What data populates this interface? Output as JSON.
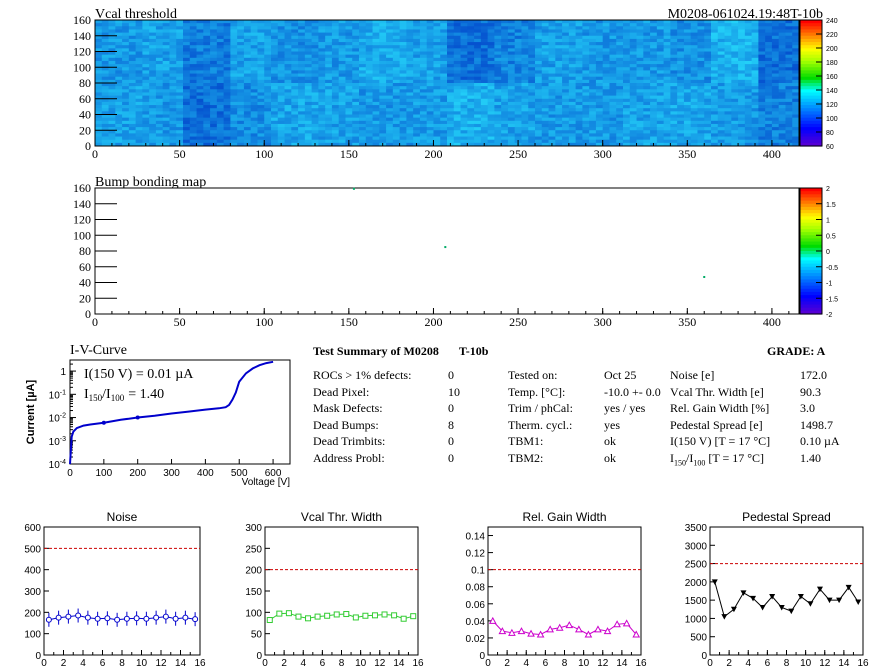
{
  "header": {
    "left_title": "Vcal threshold",
    "right_title": "M0208-061024.19:48T-10b"
  },
  "chart_data": [
    {
      "type": "heatmap",
      "title": "Vcal threshold",
      "xlim": [
        0,
        416
      ],
      "ylim": [
        0,
        160
      ],
      "x_ticks": [
        0,
        50,
        100,
        150,
        200,
        250,
        300,
        350,
        400
      ],
      "y_ticks": [
        0,
        20,
        40,
        60,
        80,
        100,
        120,
        140,
        160
      ],
      "colorbar_ticks": [
        60,
        80,
        100,
        120,
        140,
        160,
        180,
        200,
        220,
        240
      ],
      "roc_mean_levels": {
        "top": [
          0.55,
          0.6,
          0.38,
          0.6,
          0.5,
          0.55,
          0.65,
          0.6,
          0.3,
          0.42,
          0.58,
          0.55,
          0.55,
          0.5,
          0.7,
          0.3
        ],
        "bottom": [
          0.6,
          0.55,
          0.3,
          0.48,
          0.62,
          0.6,
          0.55,
          0.55,
          0.68,
          0.6,
          0.55,
          0.55,
          0.6,
          0.62,
          0.55,
          0.4
        ]
      }
    },
    {
      "type": "heatmap",
      "title": "Bump bonding map",
      "xlim": [
        0,
        416
      ],
      "ylim": [
        0,
        160
      ],
      "x_ticks": [
        0,
        50,
        100,
        150,
        200,
        250,
        300,
        350,
        400
      ],
      "y_ticks": [
        0,
        20,
        40,
        60,
        80,
        100,
        120,
        140,
        160
      ],
      "colorbar_ticks": [
        "2",
        "1.5",
        "1",
        "0.5",
        "0",
        "-0.5",
        "-1",
        "-1.5",
        "-2"
      ],
      "dead_bumps": [
        [
          153,
          159
        ],
        [
          207,
          85
        ],
        [
          360,
          47
        ]
      ]
    },
    {
      "type": "line",
      "title": "I-V-Curve",
      "ylabel": "Current [µA]",
      "xlabel": "Voltage [V]",
      "log_y": true,
      "xlim": [
        0,
        650
      ],
      "ylim": [
        0.0001,
        3
      ],
      "x_ticks": [
        0,
        100,
        200,
        300,
        400,
        500,
        600
      ],
      "y_ticks": [
        {
          "v": 0.0001,
          "m": "-4"
        },
        {
          "v": 0.001,
          "m": "-3"
        },
        {
          "v": 0.01,
          "m": "-2"
        },
        {
          "v": 0.1,
          "m": "-1"
        },
        {
          "v": 1,
          "m": "1"
        }
      ],
      "x": [
        0,
        5,
        10,
        20,
        40,
        60,
        80,
        100,
        150,
        200,
        250,
        300,
        350,
        400,
        440,
        460,
        470,
        480,
        490,
        500,
        520,
        540,
        560,
        580,
        600
      ],
      "y": [
        0.0001,
        0.0015,
        0.0025,
        0.0035,
        0.0045,
        0.005,
        0.0055,
        0.006,
        0.008,
        0.01,
        0.012,
        0.015,
        0.018,
        0.022,
        0.025,
        0.028,
        0.035,
        0.06,
        0.12,
        0.35,
        0.8,
        1.3,
        1.8,
        2.2,
        2.5
      ],
      "annotation1": "I(150 V) = 0.01 µA",
      "annotation2_main": "I",
      "annotation2_sub1": "150",
      "annotation2_mid": "/I",
      "annotation2_sub2": "100",
      "annotation2_val": "=  1.40"
    },
    {
      "type": "line",
      "title": "Noise",
      "xlim": [
        0,
        16
      ],
      "ylim": [
        0,
        600
      ],
      "x_ticks": [
        0,
        2,
        4,
        6,
        8,
        10,
        12,
        14,
        16
      ],
      "y_ticks": [
        0,
        100,
        200,
        300,
        400,
        500,
        600
      ],
      "limit": 500,
      "x": [
        0.5,
        1.5,
        2.5,
        3.5,
        4.5,
        5.5,
        6.5,
        7.5,
        8.5,
        9.5,
        10.5,
        11.5,
        12.5,
        13.5,
        14.5,
        15.5
      ],
      "values": [
        165,
        175,
        180,
        185,
        175,
        170,
        172,
        165,
        170,
        172,
        170,
        175,
        180,
        170,
        175,
        168
      ],
      "color": "#0000cc",
      "marker": "circle-open"
    },
    {
      "type": "line",
      "title": "Vcal Thr. Width",
      "xlim": [
        0,
        16
      ],
      "ylim": [
        0,
        300
      ],
      "x_ticks": [
        0,
        2,
        4,
        6,
        8,
        10,
        12,
        14,
        16
      ],
      "y_ticks": [
        0,
        50,
        100,
        150,
        200,
        250,
        300
      ],
      "limit": 200,
      "x": [
        0.5,
        1.5,
        2.5,
        3.5,
        4.5,
        5.5,
        6.5,
        7.5,
        8.5,
        9.5,
        10.5,
        11.5,
        12.5,
        13.5,
        14.5,
        15.5
      ],
      "values": [
        82,
        97,
        98,
        90,
        86,
        90,
        92,
        95,
        96,
        88,
        92,
        93,
        95,
        93,
        85,
        91
      ],
      "color": "#33cc33",
      "marker": "square-open"
    },
    {
      "type": "line",
      "title": "Rel. Gain Width",
      "xlim": [
        0,
        16
      ],
      "ylim": [
        0,
        0.15
      ],
      "x_ticks": [
        0,
        2,
        4,
        6,
        8,
        10,
        12,
        14,
        16
      ],
      "y_ticks": [
        0,
        0.02,
        0.04,
        0.06,
        0.08,
        0.1,
        0.12,
        0.14
      ],
      "limit": 0.1,
      "x": [
        0.5,
        1.5,
        2.5,
        3.5,
        4.5,
        5.5,
        6.5,
        7.5,
        8.5,
        9.5,
        10.5,
        11.5,
        12.5,
        13.5,
        14.5,
        15.5
      ],
      "values": [
        0.04,
        0.028,
        0.026,
        0.028,
        0.025,
        0.024,
        0.03,
        0.032,
        0.035,
        0.03,
        0.024,
        0.03,
        0.028,
        0.036,
        0.037,
        0.024
      ],
      "color": "#cc00cc",
      "marker": "triangle-open"
    },
    {
      "type": "line",
      "title": "Pedestal Spread",
      "xlim": [
        0,
        16
      ],
      "ylim": [
        0,
        3500
      ],
      "x_ticks": [
        0,
        2,
        4,
        6,
        8,
        10,
        12,
        14,
        16
      ],
      "y_ticks": [
        0,
        500,
        1000,
        1500,
        2000,
        2500,
        3000,
        3500
      ],
      "limit": 2500,
      "x": [
        0.5,
        1.5,
        2.5,
        3.5,
        4.5,
        5.5,
        6.5,
        7.5,
        8.5,
        9.5,
        10.5,
        11.5,
        12.5,
        13.5,
        14.5,
        15.5
      ],
      "values": [
        2000,
        1050,
        1250,
        1700,
        1550,
        1300,
        1600,
        1300,
        1200,
        1600,
        1400,
        1800,
        1500,
        1500,
        1850,
        1450
      ],
      "color": "#000000",
      "marker": "triangle-down"
    }
  ],
  "summary": {
    "title": "Test Summary of M0208",
    "tag": "T-10b",
    "grade": "GRADE:  A",
    "col1": [
      {
        "label": "ROCs > 1% defects:",
        "value": "0"
      },
      {
        "label": "Dead Pixel:",
        "value": "10"
      },
      {
        "label": "Mask Defects:",
        "value": "0"
      },
      {
        "label": "Dead Bumps:",
        "value": "8"
      },
      {
        "label": "Dead Trimbits:",
        "value": "0"
      },
      {
        "label": "Address Probl:",
        "value": "0"
      }
    ],
    "col2": [
      {
        "label": "Tested on:",
        "value": "Oct 25"
      },
      {
        "label": "Temp. [°C]:",
        "value": "-10.0 +- 0.0"
      },
      {
        "label": "Trim / phCal:",
        "value": "yes / yes"
      },
      {
        "label": "Therm. cycl.:",
        "value": "yes"
      },
      {
        "label": "TBM1:",
        "value": "ok"
      },
      {
        "label": "TBM2:",
        "value": "ok"
      }
    ],
    "col3": [
      {
        "label": "Noise [e]",
        "value": "172.0"
      },
      {
        "label": "Vcal Thr. Width [e]",
        "value": "90.3"
      },
      {
        "label": "Rel. Gain Width [%]",
        "value": "3.0"
      },
      {
        "label": "Pedestal Spread [e]",
        "value": "1498.7"
      },
      {
        "label": "I(150 V) [T = 17 °C]",
        "value": "0.10 µA"
      }
    ],
    "ratio_row": {
      "main": "I",
      "sub1": "150",
      "mid": "/I",
      "sub2": "100",
      "rest": " [T = 17 °C]",
      "value": "1.40"
    }
  }
}
